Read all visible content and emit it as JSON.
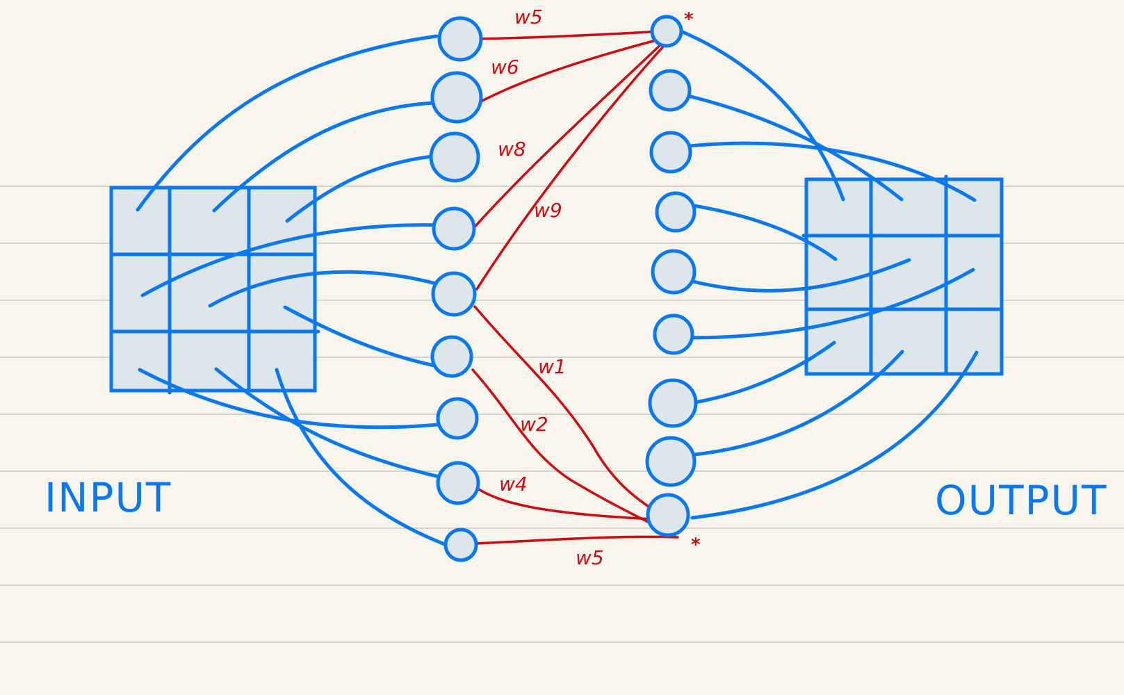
{
  "diagram": {
    "input_label": "INPUT",
    "output_label": "OUTPUT",
    "input_grid": {
      "rows": 3,
      "cols": 3
    },
    "output_grid": {
      "rows": 3,
      "cols": 3
    },
    "input_column_nodes": 9,
    "output_column_nodes": 9,
    "weight_labels": {
      "top_w5": "w5",
      "top_w6": "w6",
      "top_w8": "w8",
      "top_w9": "w9",
      "bottom_w1": "w1",
      "bottom_w2": "w2",
      "bottom_w4": "w4",
      "bottom_w5": "w5"
    },
    "target_marks": {
      "top": "*",
      "bottom": "*"
    },
    "colors": {
      "background": "#f8f6ec",
      "ink_blue": "#0a78f0",
      "ink_red": "#cf0a14",
      "cell_fill": "#dde6ea",
      "ruled_line": "#d3d3d0"
    }
  }
}
